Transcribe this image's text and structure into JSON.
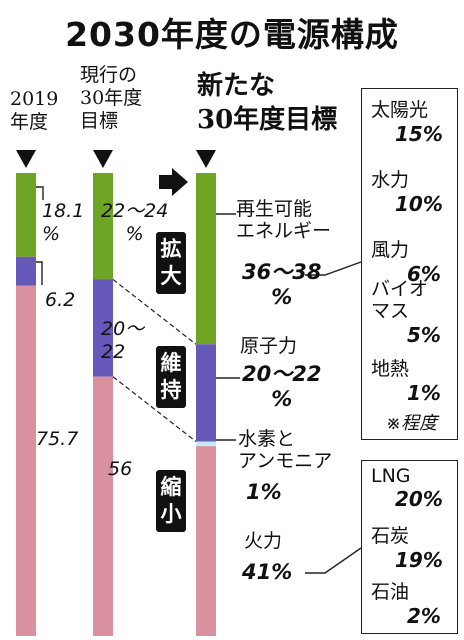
{
  "title": "2030年度の電源構成",
  "columns": [
    {
      "header": "2019\n年度"
    },
    {
      "header": "現行の\n30年度\n目標"
    },
    {
      "header": "新たな\n30年度目標"
    }
  ],
  "badges": {
    "expand": "拡大",
    "maintain": "維持",
    "shrink": "縮小"
  },
  "bar1_labels": {
    "renewable": "18.1\n%",
    "nuclear": "6.2",
    "thermal": "75.7"
  },
  "bar2_labels": {
    "renewable": "22〜24\n%",
    "nuclear": "20〜\n22",
    "thermal": "56"
  },
  "new_target": {
    "renewable": {
      "name": "再生可能\nエネルギー",
      "value": "36〜38\n%"
    },
    "nuclear": {
      "name": "原子力",
      "value": "20〜22\n%"
    },
    "hydrogen": {
      "name": "水素と\nアンモニア",
      "value": "1%"
    },
    "thermal": {
      "name": "火力",
      "value": "41%"
    }
  },
  "renewable_breakdown": [
    {
      "name": "太陽光",
      "pct": "15%"
    },
    {
      "name": "水力",
      "pct": "10%"
    },
    {
      "name": "風力",
      "pct": "6%"
    },
    {
      "name": "バイオ\nマス",
      "pct": "5%"
    },
    {
      "name": "地熱",
      "pct": "1%"
    }
  ],
  "breakdown_note": "※程度",
  "thermal_breakdown": [
    {
      "name": "LNG",
      "pct": "20%"
    },
    {
      "name": "石炭",
      "pct": "19%"
    },
    {
      "name": "石油",
      "pct": "2%"
    }
  ],
  "colors": {
    "renewable": "#6fa524",
    "nuclear": "#6658b8",
    "thermal": "#d9919f",
    "hydrogen": "#c6ebf6",
    "marker": "#111111"
  },
  "chart_data": {
    "type": "bar",
    "stacked": true,
    "categories": [
      "2019年度",
      "現行の30年度目標",
      "新たな30年度目標"
    ],
    "series": [
      {
        "name": "再生可能エネルギー",
        "values": [
          18.1,
          23,
          37
        ]
      },
      {
        "name": "原子力",
        "values": [
          6.2,
          21,
          21
        ]
      },
      {
        "name": "水素とアンモニア",
        "values": [
          0,
          0,
          1
        ]
      },
      {
        "name": "火力",
        "values": [
          75.7,
          56,
          41
        ]
      }
    ],
    "title": "2030年度の電源構成",
    "ylim": [
      0,
      100
    ]
  }
}
